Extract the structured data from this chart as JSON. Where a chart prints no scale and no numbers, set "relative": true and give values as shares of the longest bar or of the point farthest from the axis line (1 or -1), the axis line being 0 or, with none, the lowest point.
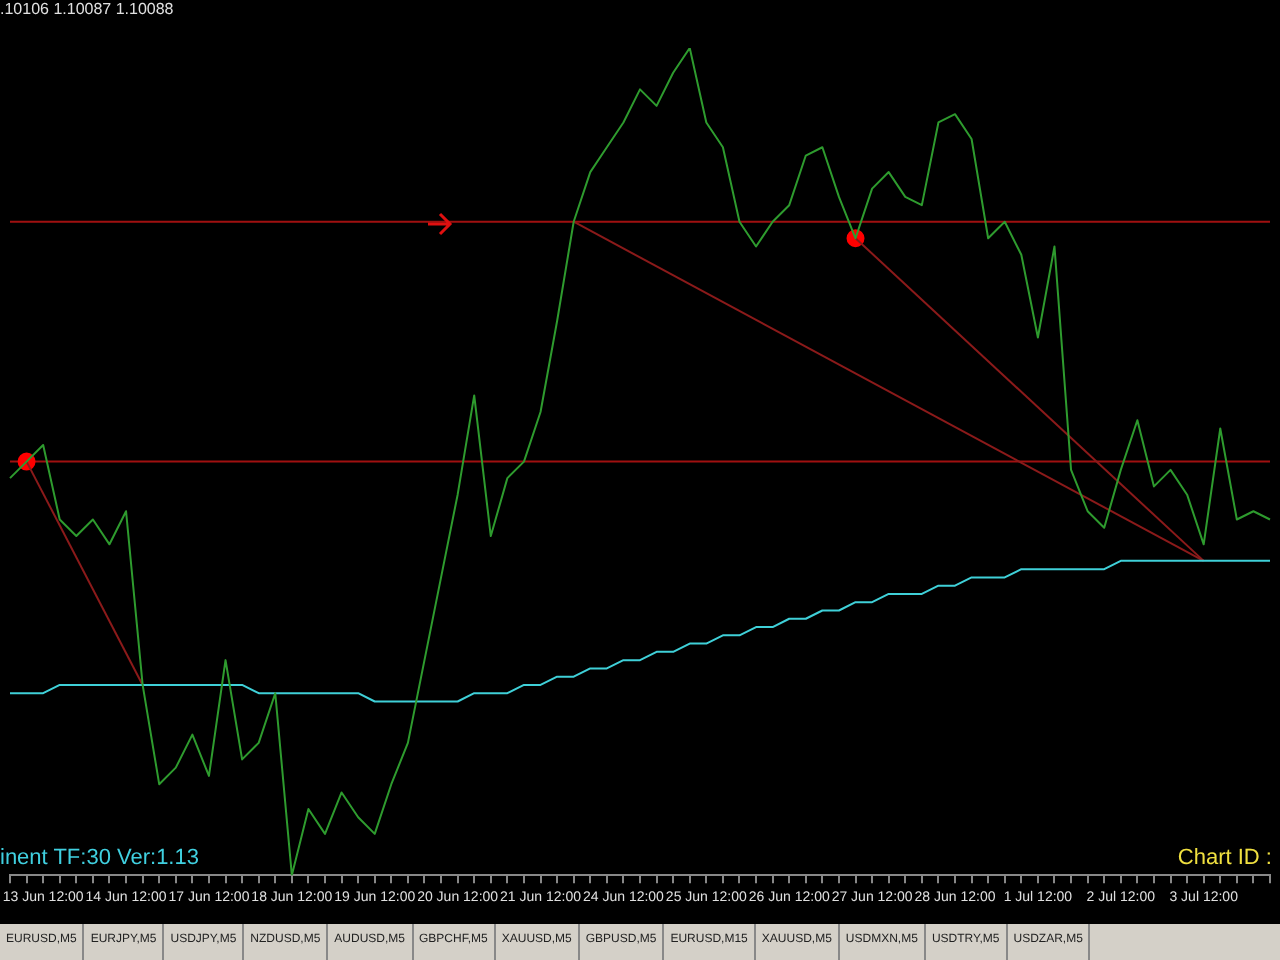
{
  "chart_data": {
    "type": "line",
    "relative": true,
    "grid": false,
    "legend": false,
    "tick_labels": "x",
    "categories": [
      null,
      null,
      "13 Jun 12:00",
      null,
      null,
      null,
      null,
      "14 Jun 12:00",
      null,
      null,
      null,
      null,
      "17 Jun 12:00",
      null,
      null,
      null,
      null,
      "18 Jun 12:00",
      null,
      null,
      null,
      null,
      "19 Jun 12:00",
      null,
      null,
      null,
      null,
      "20 Jun 12:00",
      null,
      null,
      null,
      null,
      "21 Jun 12:00",
      null,
      null,
      null,
      null,
      "24 Jun 12:00",
      null,
      null,
      null,
      null,
      "25 Jun 12:00",
      null,
      null,
      null,
      null,
      "26 Jun 12:00",
      null,
      null,
      null,
      null,
      "27 Jun 12:00",
      null,
      null,
      null,
      null,
      "28 Jun 12:00",
      null,
      null,
      null,
      null,
      "1 Jul 12:00",
      null,
      null,
      null,
      null,
      "2 Jul 12:00",
      null,
      null,
      null,
      null,
      "3 Jul 12:00",
      null,
      null,
      null,
      null
    ],
    "series": [
      {
        "type": "line",
        "color": "#2e9b2e",
        "values": [
          0.48,
          0.5,
          0.52,
          0.43,
          0.41,
          0.43,
          0.4,
          0.44,
          0.23,
          0.11,
          0.13,
          0.17,
          0.12,
          0.26,
          0.14,
          0.16,
          0.22,
          0,
          0.08,
          0.05,
          0.1,
          0.07,
          0.05,
          0.11,
          0.16,
          0.26,
          0.36,
          0.46,
          0.58,
          0.41,
          0.48,
          0.5,
          0.56,
          0.67,
          0.79,
          0.85,
          0.88,
          0.91,
          0.95,
          0.93,
          0.97,
          1,
          0.91,
          0.88,
          0.79,
          0.76,
          0.79,
          0.81,
          0.87,
          0.88,
          0.82,
          0.77,
          0.83,
          0.85,
          0.82,
          0.81,
          0.91,
          0.92,
          0.89,
          0.77,
          0.79,
          0.75,
          0.65,
          0.76,
          0.49,
          0.44,
          0.42,
          0.49,
          0.55,
          0.47,
          0.49,
          0.46,
          0.4,
          0.54,
          0.43,
          0.44,
          0.43
        ]
      },
      {
        "type": "line",
        "color": "#3fd0d8",
        "values": [
          0.22,
          0.22,
          0.22,
          0.23,
          0.23,
          0.23,
          0.23,
          0.23,
          0.23,
          0.23,
          0.23,
          0.23,
          0.23,
          0.23,
          0.23,
          0.22,
          0.22,
          0.22,
          0.22,
          0.22,
          0.22,
          0.22,
          0.21,
          0.21,
          0.21,
          0.21,
          0.21,
          0.21,
          0.22,
          0.22,
          0.22,
          0.23,
          0.23,
          0.24,
          0.24,
          0.25,
          0.25,
          0.26,
          0.26,
          0.27,
          0.27,
          0.28,
          0.28,
          0.29,
          0.29,
          0.3,
          0.3,
          0.31,
          0.31,
          0.32,
          0.32,
          0.33,
          0.33,
          0.34,
          0.34,
          0.34,
          0.35,
          0.35,
          0.36,
          0.36,
          0.36,
          0.37,
          0.37,
          0.37,
          0.37,
          0.37,
          0.37,
          0.38,
          0.38,
          0.38,
          0.38,
          0.38,
          0.38,
          0.38,
          0.38,
          0.38,
          0.38
        ]
      },
      {
        "type": "line",
        "color": "#8b1a1a",
        "values": [
          null,
          0.5,
          null,
          null,
          null,
          null,
          null,
          null,
          0.23,
          null,
          null,
          null,
          null,
          null,
          null,
          null,
          null,
          null,
          null,
          null,
          null,
          null,
          null,
          null,
          null,
          null,
          null,
          null,
          null,
          null,
          null,
          null,
          null,
          null,
          null,
          null,
          null,
          null,
          null,
          null,
          null,
          null,
          null,
          null,
          null,
          null,
          null,
          null,
          null,
          null,
          null,
          null,
          null,
          null,
          null,
          null,
          null,
          null,
          null,
          null,
          null,
          null,
          null,
          null,
          null,
          null,
          null,
          null,
          null,
          null,
          null,
          null,
          null,
          null,
          null,
          null,
          null
        ]
      },
      {
        "type": "line",
        "color": "#8b1a1a",
        "values": [
          null,
          null,
          null,
          null,
          null,
          null,
          null,
          null,
          null,
          null,
          null,
          null,
          null,
          null,
          null,
          null,
          null,
          null,
          null,
          null,
          null,
          null,
          null,
          null,
          null,
          null,
          null,
          null,
          null,
          null,
          null,
          null,
          null,
          null,
          0.79,
          null,
          null,
          null,
          null,
          null,
          null,
          null,
          null,
          null,
          null,
          null,
          null,
          null,
          null,
          null,
          null,
          null,
          null,
          null,
          null,
          null,
          null,
          null,
          null,
          null,
          null,
          null,
          null,
          null,
          null,
          null,
          null,
          null,
          null,
          null,
          null,
          null,
          0.38,
          null,
          null,
          null,
          null
        ]
      },
      {
        "type": "line",
        "color": "#8b1a1a",
        "values": [
          null,
          null,
          null,
          null,
          null,
          null,
          null,
          null,
          null,
          null,
          null,
          null,
          null,
          null,
          null,
          null,
          null,
          null,
          null,
          null,
          null,
          null,
          null,
          null,
          null,
          null,
          null,
          null,
          null,
          null,
          null,
          null,
          null,
          null,
          null,
          null,
          null,
          null,
          null,
          null,
          null,
          null,
          null,
          null,
          null,
          null,
          null,
          null,
          null,
          null,
          null,
          0.77,
          null,
          null,
          null,
          null,
          null,
          null,
          null,
          null,
          null,
          null,
          null,
          null,
          null,
          null,
          null,
          null,
          null,
          null,
          null,
          null,
          0.38,
          null,
          null,
          null,
          null
        ]
      },
      {
        "type": "scatter",
        "color": "#ff0000",
        "values": [
          null,
          0.5,
          null,
          null,
          null,
          null,
          null,
          null,
          null,
          null,
          null,
          null,
          null,
          null,
          null,
          null,
          null,
          null,
          null,
          null,
          null,
          null,
          null,
          null,
          null,
          null,
          null,
          null,
          null,
          null,
          null,
          null,
          null,
          null,
          null,
          null,
          null,
          null,
          null,
          null,
          null,
          null,
          null,
          null,
          null,
          null,
          null,
          null,
          null,
          null,
          null,
          0.77,
          null,
          null,
          null,
          null,
          null,
          null,
          null,
          null,
          null,
          null,
          null,
          null,
          null,
          null,
          null,
          null,
          null,
          null,
          null,
          null,
          null,
          null,
          null,
          null,
          null
        ]
      }
    ],
    "ref_lines": [
      {
        "axis": "y",
        "value": 0.79,
        "color": "#a01010"
      },
      {
        "axis": "y",
        "value": 0.5,
        "color": "#a01010"
      }
    ],
    "annotations": [
      ".10106 1.10087 1.10088",
      "inent TF:30 Ver:1.13",
      "Chart ID :",
      "EURUSD,M5",
      "EURJPY,M5",
      "USDJPY,M5",
      "NZDUSD,M5",
      "AUDUSD,M5",
      "GBPCHF,M5",
      "XAUUSD,M5",
      "GBPUSD,M5",
      "EURUSD,M15",
      "XAUUSD,M5",
      "USDMXN,M5",
      "USDTRY,M5",
      "USDZAR,M5"
    ]
  }
}
